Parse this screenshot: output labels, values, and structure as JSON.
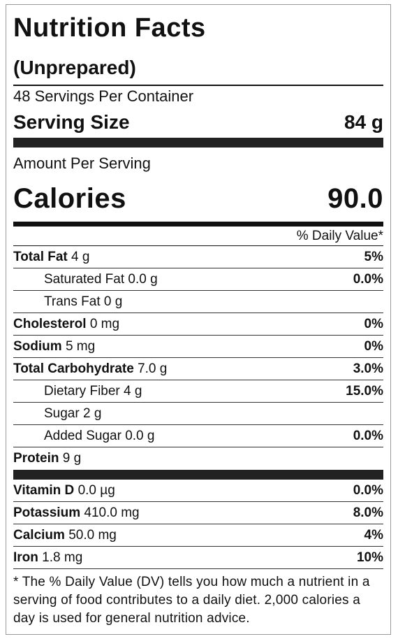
{
  "title": "Nutrition Facts",
  "subtitle": "(Unprepared)",
  "servings": "48 Servings Per Container",
  "serving_size": {
    "label": "Serving Size",
    "value": "84 g"
  },
  "amount_per_serving": "Amount Per Serving",
  "calories": {
    "label": "Calories",
    "value": "90.0"
  },
  "daily_value_header": "% Daily Value*",
  "nutrients": [
    {
      "name": "Total Fat",
      "amount": "4 g",
      "dv": "5%",
      "sub": [
        {
          "name": "Saturated Fat",
          "amount": "0.0 g",
          "dv": "0.0%"
        },
        {
          "name": "Trans Fat",
          "amount": "0 g"
        }
      ]
    },
    {
      "name": "Cholesterol",
      "amount": "0 mg",
      "dv": "0%"
    },
    {
      "name": "Sodium",
      "amount": "5 mg",
      "dv": "0%"
    },
    {
      "name": "Total Carbohydrate",
      "amount": "7.0 g",
      "dv": "3.0%",
      "sub": [
        {
          "name": "Dietary Fiber",
          "amount": "4 g",
          "dv": "15.0%"
        },
        {
          "name": "Sugar",
          "amount": "2 g"
        },
        {
          "name": "Added Sugar",
          "amount": "0.0 g",
          "dv": "0.0%"
        }
      ]
    },
    {
      "name": "Protein",
      "amount": "9 g"
    }
  ],
  "vitamins": [
    {
      "name": "Vitamin D",
      "amount": "0.0 µg",
      "dv": "0.0%"
    },
    {
      "name": "Potassium",
      "amount": "410.0 mg",
      "dv": "8.0%"
    },
    {
      "name": "Calcium",
      "amount": "50.0 mg",
      "dv": "4%"
    },
    {
      "name": "Iron",
      "amount": "1.8 mg",
      "dv": "10%"
    }
  ],
  "footnote": "* The % Daily Value (DV) tells you how much a nutrient in a serving of food contributes to a daily diet. 2,000 calories a day is used for general nutrition advice."
}
